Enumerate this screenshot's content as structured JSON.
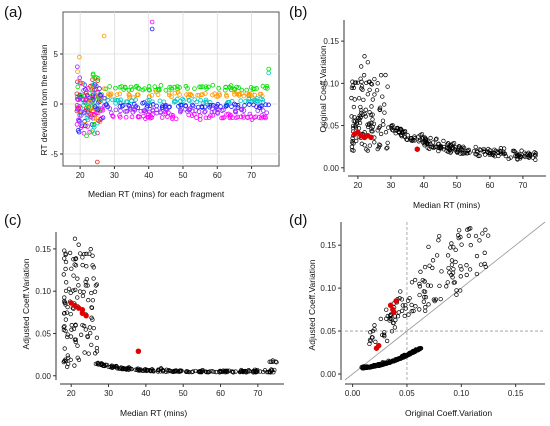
{
  "panels": [
    {
      "label": "(a)",
      "chart_data": {
        "type": "scatter",
        "xlabel": "Median RT (mins) for each fragment",
        "ylabel": "RT deviation from the median",
        "xlim": [
          15,
          78
        ],
        "ylim": [
          -6.2,
          9.2
        ],
        "xticks": [
          20,
          30,
          40,
          50,
          60,
          70
        ],
        "yticks": [
          -5,
          0,
          5
        ],
        "grid": true,
        "colors": [
          "#ff00ff",
          "#1e1eff",
          "#00e000",
          "#00c8c8",
          "#ff9900",
          "#ff2020",
          "#9a2bff"
        ],
        "series": [
          {
            "color": "#00e000",
            "offset": 1.6
          },
          {
            "color": "#ff9900",
            "offset": 0.9
          },
          {
            "color": "#00c8c8",
            "offset": 0.3
          },
          {
            "color": "#1e1eff",
            "offset": -0.2
          },
          {
            "color": "#9a2bff",
            "offset": -0.7
          },
          {
            "color": "#ff00ff",
            "offset": -1.3
          }
        ]
      }
    },
    {
      "label": "(b)",
      "chart_data": {
        "type": "scatter",
        "xlabel": "Median RT (mins)",
        "ylabel": "Original Coeff.Variation",
        "xlim": [
          17,
          77
        ],
        "ylim": [
          -0.005,
          0.175
        ],
        "xticks": [
          20,
          30,
          40,
          50,
          60,
          70
        ],
        "yticks": [
          0.0,
          0.05,
          0.1,
          0.15
        ],
        "ytick_labels": [
          "0.00",
          "0.05",
          "0.10",
          "0.15"
        ],
        "highlight": [
          [
            19,
            0.04
          ],
          [
            20,
            0.042
          ],
          [
            21,
            0.038
          ],
          [
            22,
            0.036
          ],
          [
            23,
            0.038
          ],
          [
            24,
            0.036
          ],
          [
            38,
            0.022
          ]
        ]
      }
    },
    {
      "label": "(c)",
      "chart_data": {
        "type": "scatter",
        "xlabel": "Median RT (mins)",
        "ylabel": "Adjusted Coeff.Variation",
        "xlim": [
          17,
          77
        ],
        "ylim": [
          -0.005,
          0.17
        ],
        "xticks": [
          20,
          30,
          40,
          50,
          60,
          70
        ],
        "yticks": [
          0.0,
          0.05,
          0.1,
          0.15
        ],
        "ytick_labels": [
          "0.00",
          "0.05",
          "0.10",
          "0.15"
        ],
        "highlight": [
          [
            20,
            0.086
          ],
          [
            21,
            0.083
          ],
          [
            22,
            0.08
          ],
          [
            23,
            0.078
          ],
          [
            23,
            0.074
          ],
          [
            24,
            0.071
          ],
          [
            38,
            0.029
          ]
        ]
      }
    },
    {
      "label": "(d)",
      "chart_data": {
        "type": "scatter",
        "xlabel": "Original Coeff.Variation",
        "ylabel": "Adjusted Coeff.Variation",
        "xlim": [
          -0.007,
          0.177
        ],
        "ylim": [
          -0.007,
          0.177
        ],
        "xticks": [
          0.0,
          0.05,
          0.1,
          0.15
        ],
        "yticks": [
          0.0,
          0.05,
          0.1,
          0.15
        ],
        "xtick_labels": [
          "0.00",
          "0.05",
          "0.10",
          "0.15"
        ],
        "ytick_labels": [
          "0.00",
          "0.05",
          "0.10",
          "0.15"
        ],
        "reference_lines": {
          "diagonal": true,
          "vline": 0.05,
          "hline": 0.05
        },
        "highlight": [
          [
            0.035,
            0.08
          ],
          [
            0.037,
            0.075
          ],
          [
            0.038,
            0.072
          ],
          [
            0.04,
            0.085
          ],
          [
            0.022,
            0.03
          ],
          [
            0.024,
            0.033
          ]
        ]
      }
    }
  ]
}
